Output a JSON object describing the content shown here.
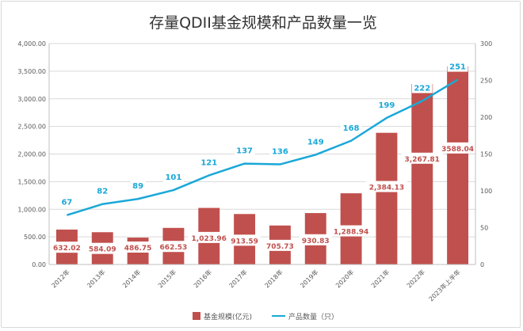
{
  "chart_data": {
    "type": "bar",
    "title": "存量QDII基金规模和产品数量一览",
    "categories": [
      "2012年",
      "2013年",
      "2014年",
      "2015年",
      "2016年",
      "2017年",
      "2018年",
      "2019年",
      "2020年",
      "2021年",
      "2022年",
      "2023年上半年"
    ],
    "series": [
      {
        "name": "基金规模(亿元)",
        "type": "bar",
        "axis": "left",
        "color": "#c0504d",
        "values": [
          632.02,
          584.09,
          486.75,
          662.53,
          1023.96,
          913.59,
          705.73,
          930.83,
          1288.94,
          2384.13,
          3267.81,
          3588.04
        ],
        "labels": [
          "632.02",
          "584.09",
          "486.75",
          "662.53",
          "1,023.96",
          "913.59",
          "705.73",
          "930.83",
          "1,288.94",
          "2,384.13",
          "3,267.81",
          "3588.04"
        ]
      },
      {
        "name": "产品数量（只）",
        "type": "line",
        "axis": "right",
        "color": "#1aa8d8",
        "values": [
          67,
          82,
          89,
          101,
          121,
          137,
          136,
          149,
          168,
          199,
          222,
          251
        ],
        "labels": [
          "67",
          "82",
          "89",
          "101",
          "121",
          "137",
          "136",
          "149",
          "168",
          "199",
          "222",
          "251"
        ]
      }
    ],
    "y_left": {
      "min": 0,
      "max": 4000,
      "ticks": [
        "0.00",
        "500.00",
        "1,000.00",
        "1,500.00",
        "2,000.00",
        "2,500.00",
        "3,000.00",
        "3,500.00",
        "4,000.00"
      ]
    },
    "y_right": {
      "min": 0,
      "max": 300,
      "ticks": [
        "0",
        "50",
        "100",
        "150",
        "200",
        "250",
        "300"
      ]
    },
    "grid": true,
    "legend_position": "bottom"
  }
}
